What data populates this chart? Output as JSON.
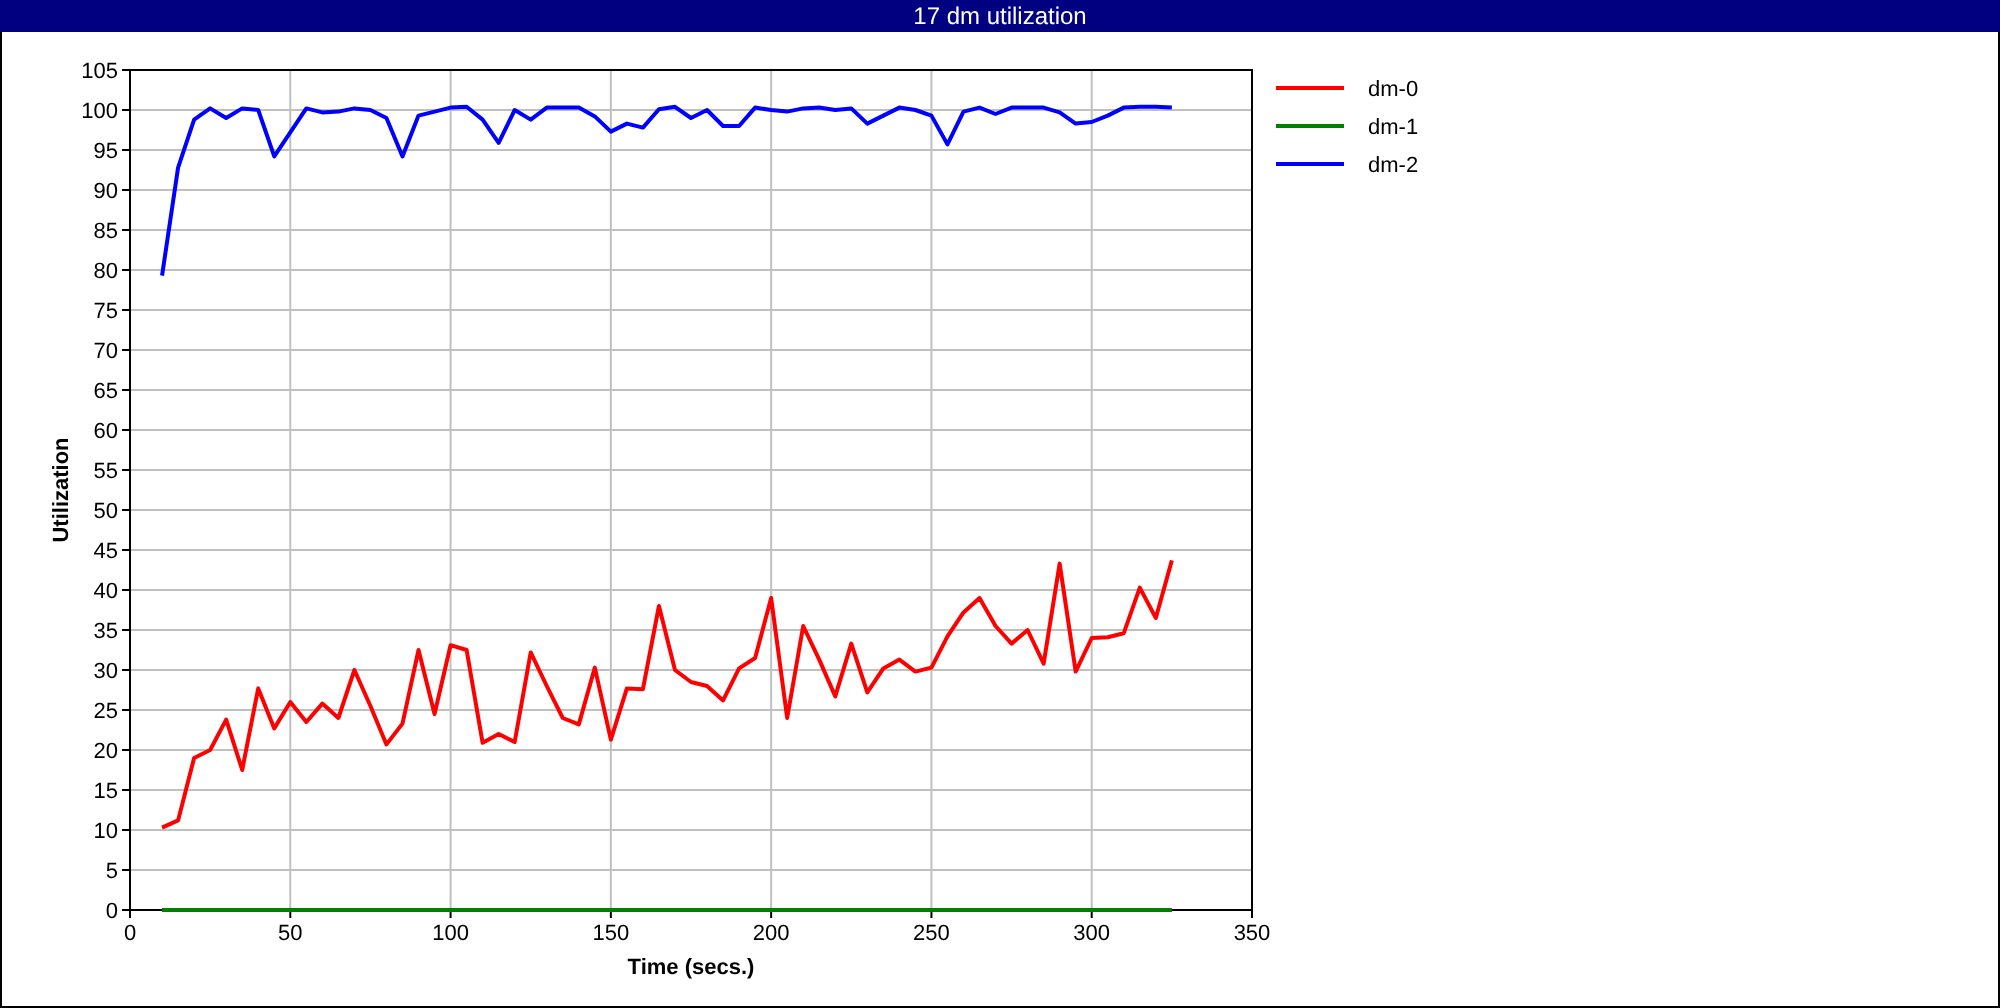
{
  "chart_data": {
    "type": "line",
    "title": "17 dm utilization",
    "xlabel": "Time (secs.)",
    "ylabel": "Utilization",
    "x": [
      10,
      15,
      20,
      25,
      30,
      35,
      40,
      45,
      50,
      55,
      60,
      65,
      70,
      75,
      80,
      85,
      90,
      95,
      100,
      105,
      110,
      115,
      120,
      125,
      130,
      135,
      140,
      145,
      150,
      155,
      160,
      165,
      170,
      175,
      180,
      185,
      190,
      195,
      200,
      205,
      210,
      215,
      220,
      225,
      230,
      235,
      240,
      245,
      250,
      255,
      260,
      265,
      270,
      275,
      280,
      285,
      290,
      295,
      300,
      305,
      310,
      315,
      320,
      325
    ],
    "series": [
      {
        "name": "dm-0",
        "color": "#ff0000",
        "values": [
          10.3,
          11.2,
          19,
          20,
          23.8,
          17.5,
          27.7,
          22.7,
          26,
          23.5,
          25.8,
          24,
          30,
          25.5,
          20.7,
          23.3,
          32.5,
          24.5,
          33.1,
          32.5,
          20.9,
          22,
          21,
          32.2,
          28,
          24,
          23.2,
          30.3,
          21.3,
          27.7,
          27.6,
          38,
          30,
          28.5,
          28,
          26.2,
          30.2,
          31.5,
          39,
          24,
          35.5,
          31.3,
          26.7,
          33.3,
          27.2,
          30.2,
          31.3,
          29.8,
          30.3,
          34.2,
          37.2,
          39,
          35.5,
          33.3,
          35,
          30.8,
          43.3,
          29.8,
          34,
          34.1,
          34.6,
          40.3,
          36.5,
          43.7
        ]
      },
      {
        "name": "dm-1",
        "color": "#008000",
        "values": [
          0,
          0,
          0,
          0,
          0,
          0,
          0,
          0,
          0,
          0,
          0,
          0,
          0,
          0,
          0,
          0,
          0,
          0,
          0,
          0,
          0,
          0,
          0,
          0,
          0,
          0,
          0,
          0,
          0,
          0,
          0,
          0,
          0,
          0,
          0,
          0,
          0,
          0,
          0,
          0,
          0,
          0,
          0,
          0,
          0,
          0,
          0,
          0,
          0,
          0,
          0,
          0,
          0,
          0,
          0,
          0,
          0,
          0,
          0,
          0,
          0,
          0,
          0,
          0
        ]
      },
      {
        "name": "dm-2",
        "color": "#0000ff",
        "values": [
          79.3,
          92.8,
          98.8,
          100.2,
          99,
          100.2,
          100,
          94.2,
          97.2,
          100.2,
          99.7,
          99.8,
          100.2,
          100,
          99,
          94.2,
          99.3,
          99.8,
          100.3,
          100.4,
          98.8,
          95.9,
          100,
          98.8,
          100.3,
          100.3,
          100.3,
          99.2,
          97.3,
          98.3,
          97.8,
          100.1,
          100.4,
          99,
          100,
          98,
          98,
          100.3,
          100,
          99.8,
          100.2,
          100.3,
          100,
          100.2,
          98.3,
          99.3,
          100.3,
          100,
          99.3,
          95.7,
          99.8,
          100.3,
          99.5,
          100.3,
          100.3,
          100.3,
          99.7,
          98.3,
          98.5,
          99.3,
          100.3,
          100.4,
          100.4,
          100.3
        ]
      }
    ],
    "xlim": [
      0,
      350
    ],
    "xticks": [
      0,
      50,
      100,
      150,
      200,
      250,
      300,
      350
    ],
    "ylim": [
      0,
      105
    ],
    "yticks": [
      0,
      5,
      10,
      15,
      20,
      25,
      30,
      35,
      40,
      45,
      50,
      55,
      60,
      65,
      70,
      75,
      80,
      85,
      90,
      95,
      100,
      105
    ],
    "grid": true,
    "legend": "right",
    "marker": "none",
    "line_style": "solid"
  }
}
